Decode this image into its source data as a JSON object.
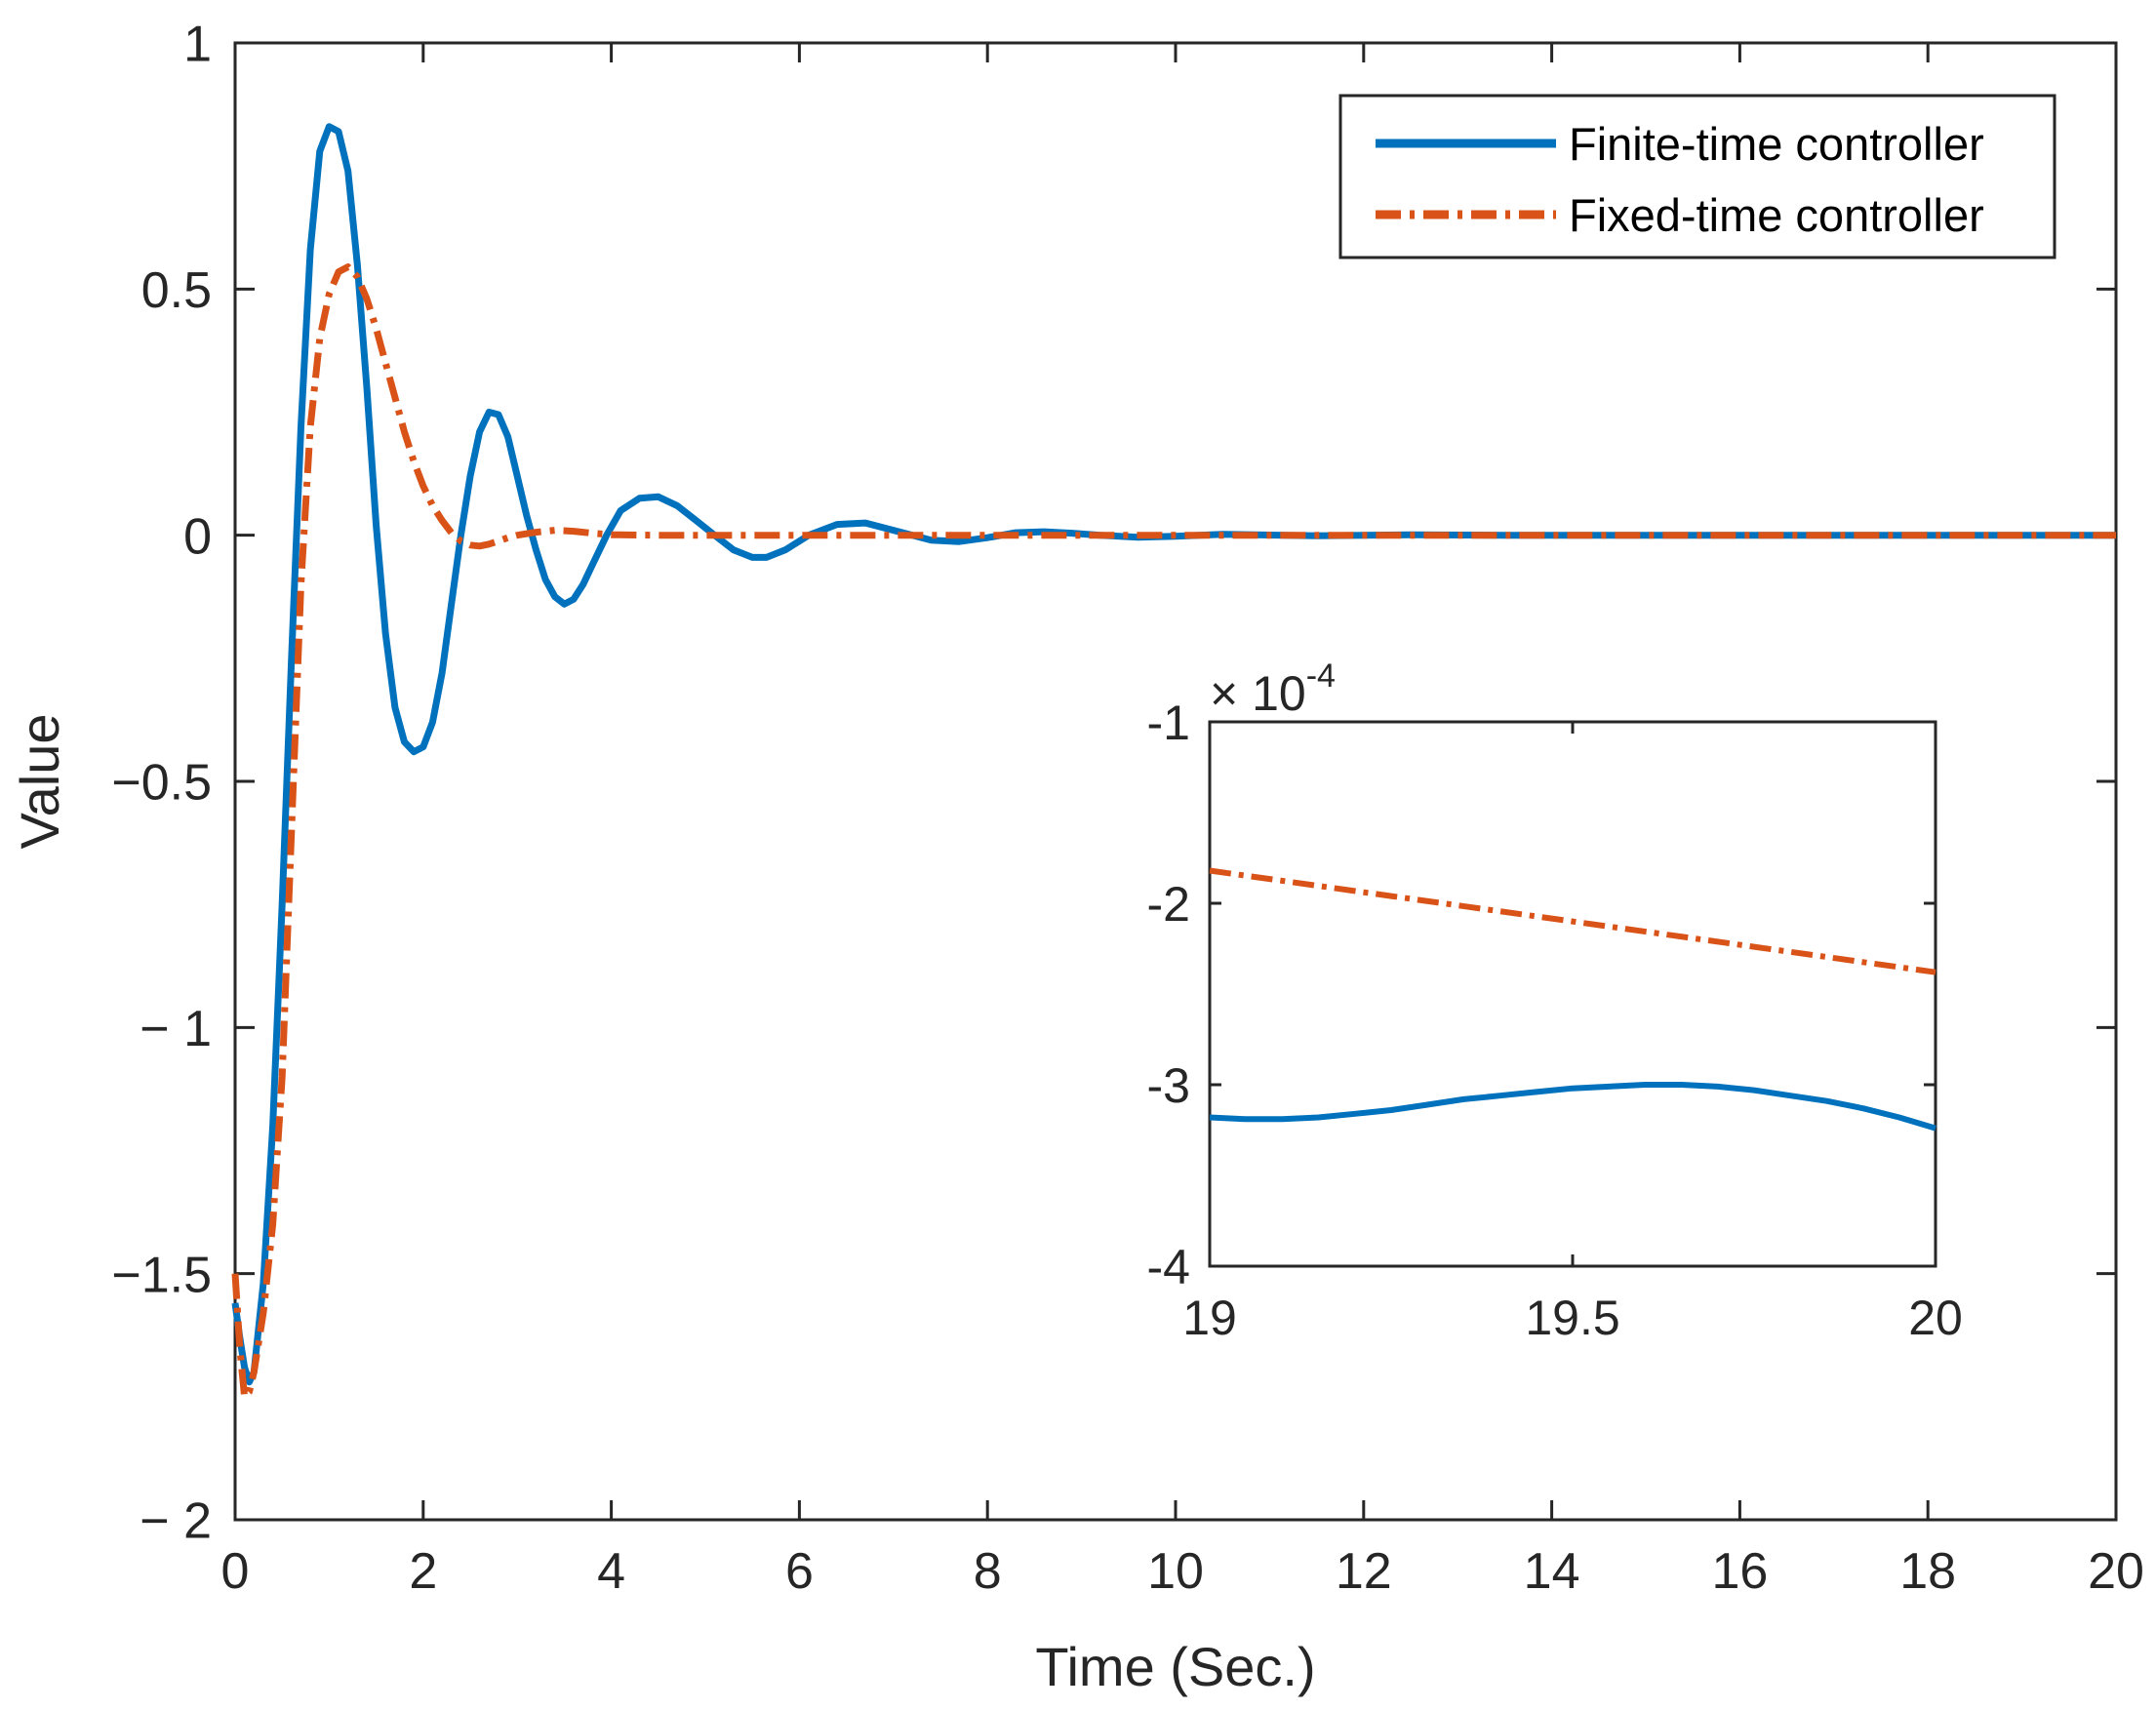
{
  "chart_data": [
    {
      "type": "line",
      "title": "",
      "xlabel": "Time (Sec.)",
      "ylabel": "Value",
      "xlim": [
        0,
        20
      ],
      "ylim": [
        -2,
        1
      ],
      "xticks": [
        0,
        2,
        4,
        6,
        8,
        10,
        12,
        14,
        16,
        18,
        20
      ],
      "xtick_labels": [
        "0",
        "2",
        "4",
        "6",
        "8",
        "10",
        "12",
        "14",
        "16",
        "18",
        "20"
      ],
      "yticks": [
        1,
        0.5,
        0,
        -0.5,
        -1,
        -1.5,
        -2
      ],
      "ytick_labels": [
        "1",
        "0.5",
        "0",
        "−0.5",
        "− 1",
        "−1.5",
        "− 2"
      ],
      "grid": false,
      "legend_position": "top-right",
      "series": [
        {
          "name": "Finite-time controller",
          "color": "#0072BD",
          "style": "solid",
          "x": [
            0.0,
            0.05,
            0.1,
            0.15,
            0.2,
            0.3,
            0.4,
            0.5,
            0.6,
            0.7,
            0.8,
            0.9,
            1.0,
            1.1,
            1.2,
            1.3,
            1.4,
            1.5,
            1.6,
            1.7,
            1.8,
            1.9,
            2.0,
            2.1,
            2.2,
            2.3,
            2.4,
            2.5,
            2.6,
            2.7,
            2.8,
            2.9,
            3.0,
            3.1,
            3.2,
            3.3,
            3.4,
            3.5,
            3.6,
            3.7,
            3.8,
            3.95,
            4.1,
            4.3,
            4.5,
            4.7,
            4.9,
            5.1,
            5.3,
            5.5,
            5.65,
            5.85,
            6.1,
            6.4,
            6.7,
            7.0,
            7.4,
            7.7,
            8.0,
            8.3,
            8.6,
            8.9,
            9.2,
            9.6,
            10.0,
            10.5,
            11.5,
            12.5,
            13.5,
            14.5,
            16.0,
            18.0,
            20.0
          ],
          "values": [
            -1.56,
            -1.63,
            -1.69,
            -1.72,
            -1.7,
            -1.52,
            -1.2,
            -0.75,
            -0.25,
            0.22,
            0.58,
            0.78,
            0.83,
            0.82,
            0.74,
            0.55,
            0.3,
            0.02,
            -0.2,
            -0.35,
            -0.42,
            -0.44,
            -0.43,
            -0.38,
            -0.28,
            -0.14,
            0.0,
            0.12,
            0.21,
            0.25,
            0.245,
            0.2,
            0.12,
            0.04,
            -0.03,
            -0.09,
            -0.125,
            -0.14,
            -0.13,
            -0.1,
            -0.06,
            0.0,
            0.05,
            0.075,
            0.078,
            0.06,
            0.03,
            0.0,
            -0.03,
            -0.045,
            -0.045,
            -0.03,
            0.0,
            0.022,
            0.025,
            0.01,
            -0.01,
            -0.013,
            -0.005,
            0.005,
            0.007,
            0.004,
            0.0,
            -0.004,
            -0.002,
            0.002,
            -0.001,
            0.001,
            0.0,
            0.0,
            0.0,
            0.0,
            0.0
          ]
        },
        {
          "name": "Fixed-time controller",
          "color": "#D95319",
          "style": "dashdot",
          "x": [
            0.0,
            0.05,
            0.1,
            0.15,
            0.2,
            0.3,
            0.4,
            0.5,
            0.6,
            0.7,
            0.8,
            0.9,
            1.0,
            1.1,
            1.2,
            1.3,
            1.4,
            1.5,
            1.6,
            1.7,
            1.8,
            1.9,
            2.0,
            2.1,
            2.2,
            2.3,
            2.4,
            2.5,
            2.6,
            2.7,
            2.8,
            2.9,
            3.0,
            3.2,
            3.4,
            3.6,
            3.8,
            4.0,
            4.5,
            5.0,
            6.0,
            8.0,
            10.0,
            14.0,
            20.0
          ],
          "values": [
            -1.5,
            -1.65,
            -1.75,
            -1.74,
            -1.7,
            -1.58,
            -1.4,
            -1.1,
            -0.6,
            -0.1,
            0.22,
            0.4,
            0.49,
            0.535,
            0.545,
            0.525,
            0.48,
            0.42,
            0.35,
            0.28,
            0.21,
            0.15,
            0.1,
            0.06,
            0.03,
            0.005,
            -0.012,
            -0.02,
            -0.022,
            -0.018,
            -0.012,
            -0.005,
            0.0,
            0.006,
            0.01,
            0.008,
            0.004,
            0.001,
            0.0,
            0.0,
            0.0,
            0.0,
            0.0,
            0.0,
            0.0
          ]
        }
      ]
    },
    {
      "type": "line",
      "title": "",
      "xlabel": "",
      "ylabel": "",
      "xlim": [
        19,
        20
      ],
      "ylim": [
        -4,
        -1
      ],
      "exponent_label": "× 10",
      "exponent_power": "-4",
      "xticks": [
        19,
        19.5,
        20
      ],
      "xtick_labels": [
        "19",
        "19.5",
        "20"
      ],
      "yticks": [
        -1,
        -2,
        -3,
        -4
      ],
      "ytick_labels": [
        "-1",
        "-2",
        "-3",
        "-4"
      ],
      "grid": false,
      "legend_position": "none",
      "series": [
        {
          "name": "Finite-time controller",
          "color": "#0072BD",
          "style": "solid",
          "x": [
            19.0,
            19.05,
            19.1,
            19.15,
            19.2,
            19.25,
            19.3,
            19.35,
            19.4,
            19.45,
            19.5,
            19.55,
            19.6,
            19.65,
            19.7,
            19.75,
            19.8,
            19.85,
            19.9,
            19.95,
            20.0
          ],
          "values": [
            -3.18,
            -3.19,
            -3.19,
            -3.18,
            -3.16,
            -3.14,
            -3.11,
            -3.08,
            -3.06,
            -3.04,
            -3.02,
            -3.01,
            -3.0,
            -3.0,
            -3.01,
            -3.03,
            -3.06,
            -3.09,
            -3.13,
            -3.18,
            -3.24
          ]
        },
        {
          "name": "Fixed-time controller",
          "color": "#D95319",
          "style": "dashdot",
          "x": [
            19.0,
            19.25,
            19.5,
            19.75,
            20.0
          ],
          "values": [
            -1.82,
            -1.96,
            -2.1,
            -2.24,
            -2.38
          ]
        }
      ]
    }
  ]
}
